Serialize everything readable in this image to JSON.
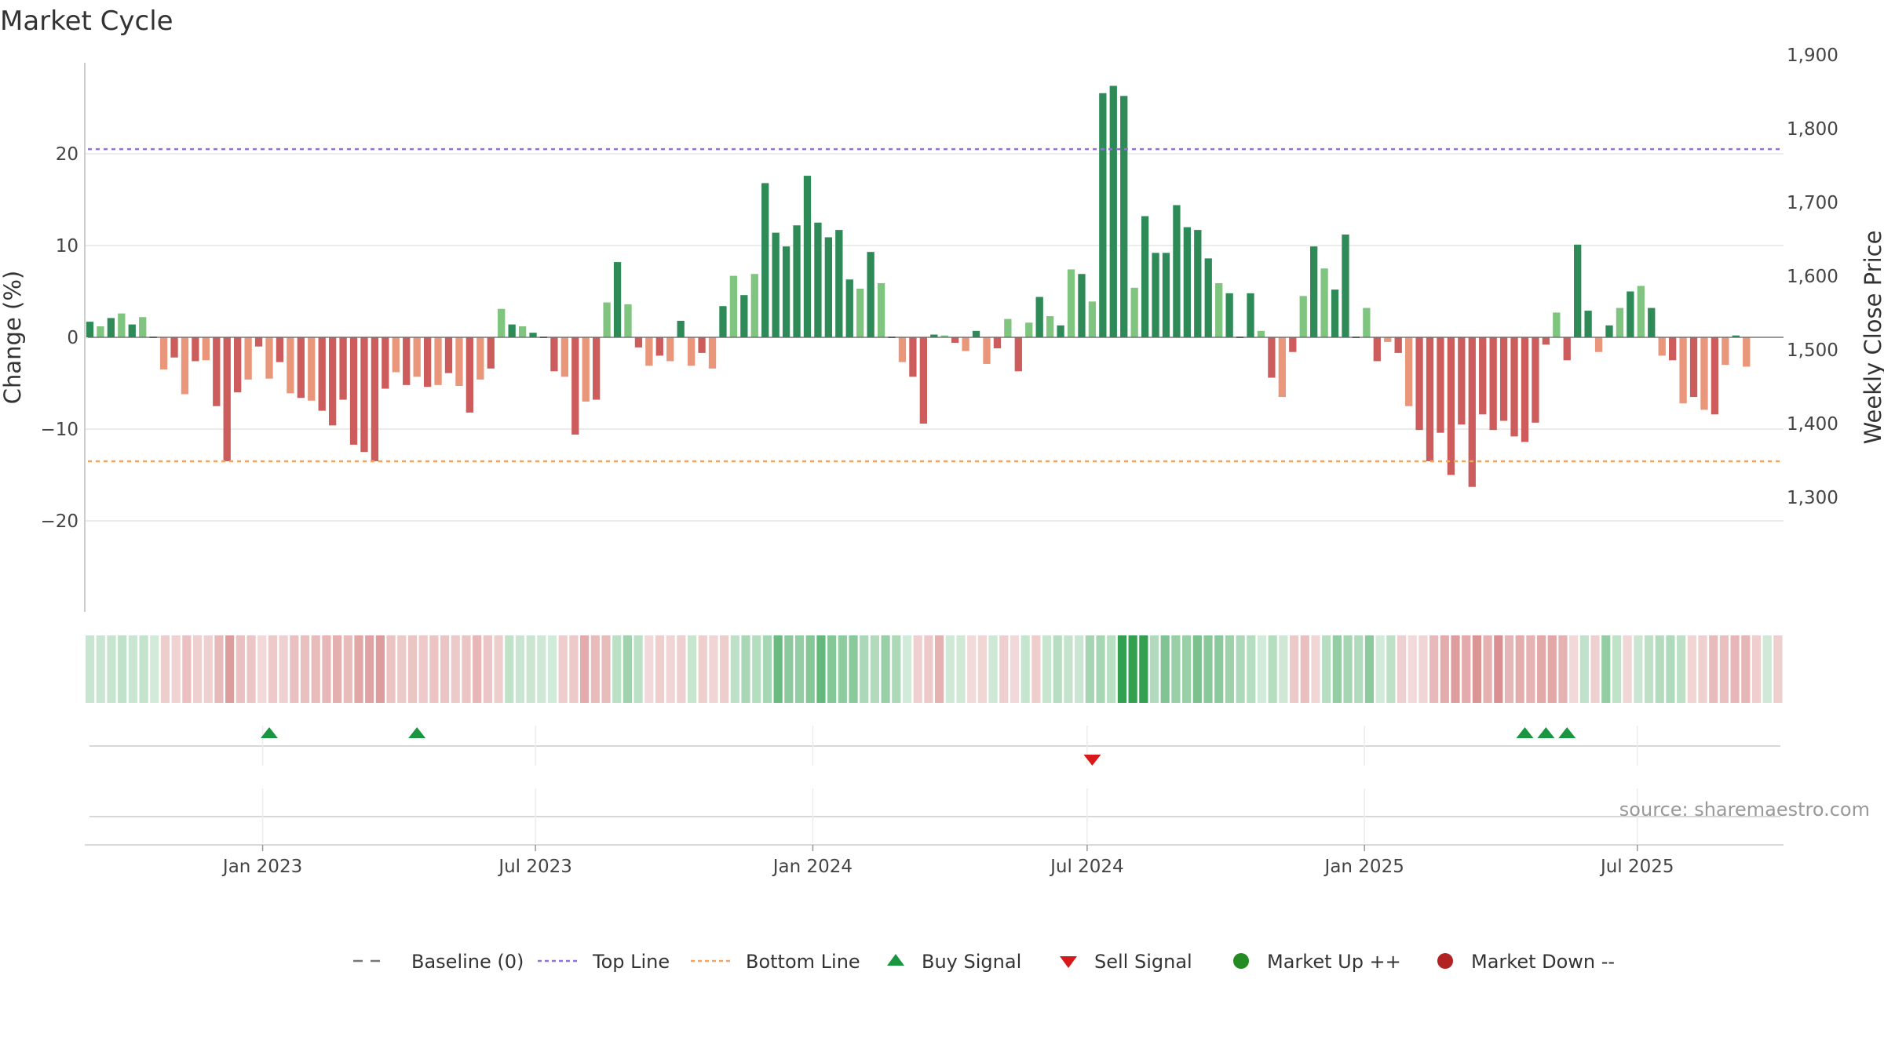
{
  "chart_data": {
    "type": "bar",
    "title": "Market Cycle",
    "ylabel": "Change (%)",
    "y2label": "Weekly Close Price",
    "ylim": [
      -30,
      30
    ],
    "y2lim": [
      1240,
      1990
    ],
    "yticks": [
      20,
      10,
      0,
      -10,
      -20
    ],
    "ytick_labels": [
      "20",
      "10",
      "0",
      "−10",
      "−20"
    ],
    "y2ticks": [
      1900,
      1800,
      1700,
      1600,
      1500,
      1400,
      1300
    ],
    "y2tick_labels": [
      "1,900",
      "1,800",
      "1,700",
      "1,600",
      "1,500",
      "1,400",
      "1,300"
    ],
    "x_start": "2022-09-05",
    "x_end": "2025-10-06",
    "x_ticks": [
      {
        "date": "2023-01-01",
        "label": "Jan 2023"
      },
      {
        "date": "2023-07-01",
        "label": "Jul 2023"
      },
      {
        "date": "2024-01-01",
        "label": "Jan 2024"
      },
      {
        "date": "2024-07-01",
        "label": "Jul 2024"
      },
      {
        "date": "2025-01-01",
        "label": "Jan 2025"
      },
      {
        "date": "2025-07-01",
        "label": "Jul 2025"
      }
    ],
    "first_week": "2022-09-05",
    "week_values": [
      1.7,
      1.2,
      2.1,
      2.6,
      1.4,
      2.2,
      0,
      -3.5,
      -2.2,
      -6.2,
      -2.6,
      -2.5,
      -7.5,
      -13.5,
      -6.0,
      -4.6,
      -1.0,
      -4.5,
      -2.7,
      -6.1,
      -6.6,
      -6.9,
      -8.0,
      -9.6,
      -6.8,
      -11.7,
      -12.5,
      -13.5,
      -5.6,
      -3.8,
      -5.2,
      -4.3,
      -5.4,
      -5.2,
      -3.9,
      -5.3,
      -8.2,
      -4.6,
      -3.4,
      3.1,
      1.4,
      1.2,
      0.5,
      0,
      -3.7,
      -4.3,
      -10.6,
      -7.0,
      -6.8,
      3.8,
      8.2,
      3.6,
      -1.1,
      -3.1,
      -2.0,
      -2.6,
      1.8,
      -3.1,
      -1.7,
      -3.4,
      3.4,
      6.7,
      4.6,
      6.9,
      16.8,
      11.4,
      9.9,
      12.2,
      17.6,
      12.5,
      10.9,
      11.7,
      6.3,
      5.3,
      9.3,
      5.9,
      0,
      -2.7,
      -4.3,
      -9.4,
      0.3,
      0.2,
      -0.6,
      -1.5,
      0.7,
      -2.9,
      -1.2,
      2.0,
      -3.7,
      1.6,
      4.4,
      2.3,
      1.3,
      7.4,
      6.9,
      3.9,
      26.6,
      27.4,
      26.3,
      5.4,
      13.2,
      9.2,
      9.2,
      14.4,
      12.0,
      11.7,
      8.6,
      5.9,
      4.8,
      0,
      4.8,
      0.7,
      -4.4,
      -6.5,
      -1.6,
      4.5,
      9.9,
      7.5,
      5.2,
      11.2,
      0,
      3.2,
      -2.6,
      -0.5,
      -1.7,
      -7.5,
      -10.1,
      -13.5,
      -10.4,
      -15.0,
      -9.5,
      -16.3,
      -8.4,
      -10.1,
      -9.1,
      -10.8,
      -11.4,
      -9.3,
      -0.8,
      2.7,
      -2.5,
      10.1,
      2.9,
      -1.6,
      1.3,
      3.2,
      5.0,
      5.6,
      3.2,
      -2.0,
      -2.5,
      -7.2,
      -6.5,
      -7.9,
      -8.4,
      -3.0,
      0.2,
      -3.2
    ],
    "top_line": 20.5,
    "bottom_line": -13.5,
    "buy_signal_weeks": [
      17,
      31,
      136,
      138,
      140
    ],
    "sell_signal_weeks": [
      95
    ],
    "source": "source: sharemaestro.com",
    "colors": {
      "strong_up": "#2e8b57",
      "light_up": "#7fc47f",
      "strong_down": "#cd5c5c",
      "light_down": "#e9967a",
      "top_line": "#9370db",
      "bottom_line": "#f4a460",
      "buy": "#1a9641",
      "sell": "#d7191c",
      "market_up": "#228b22",
      "market_down": "#b22222",
      "baseline": "#777777"
    },
    "legend": [
      {
        "key": "baseline",
        "label": "Baseline (0)"
      },
      {
        "key": "top",
        "label": "Top Line"
      },
      {
        "key": "bottom",
        "label": "Bottom Line"
      },
      {
        "key": "buy",
        "label": "Buy Signal"
      },
      {
        "key": "sell",
        "label": "Sell Signal"
      },
      {
        "key": "mup",
        "label": "Market Up ++"
      },
      {
        "key": "mdown",
        "label": "Market Down --"
      }
    ]
  }
}
